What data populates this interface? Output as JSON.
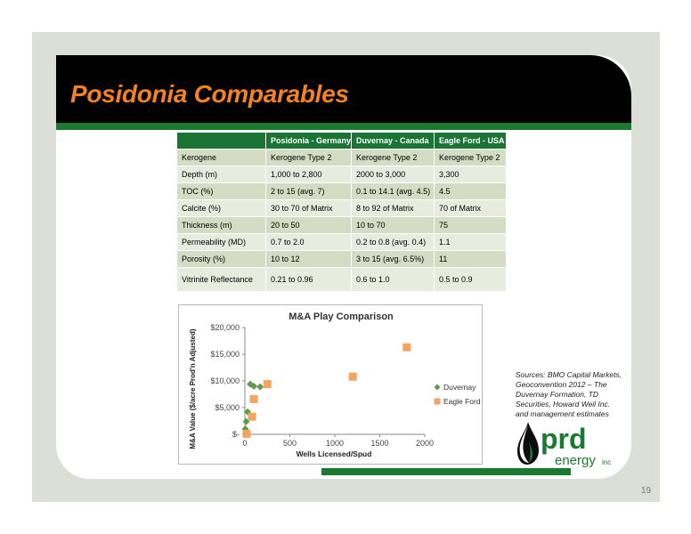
{
  "slide": {
    "title": "Posidonia Comparables",
    "page_number": "19",
    "sources": "Sources: BMO Capital Markets, Geoconvention 2012 – The Duvernay Formation, TD Securities, Howard Weil Inc. and management estimates",
    "logo": {
      "brand": "prd",
      "sub": "energy",
      "suffix": "inc"
    }
  },
  "colors": {
    "title": "#f58220",
    "header_green": "#1a7433",
    "row_dark": "#d4ddc3",
    "row_light": "#e8ecdf"
  },
  "table": {
    "headers": [
      "",
      "Posidonia - Germany",
      "Duvernay - Canada",
      "Eagle Ford - USA"
    ],
    "rows": [
      [
        "Kerogene",
        "Kerogene Type 2",
        "Kerogene Type 2",
        "Kerogene Type 2"
      ],
      [
        "Depth (m)",
        "1,000 to 2,800",
        "2000 to 3,000",
        "3,300"
      ],
      [
        "TOC (%)",
        "2 to 15 (avg. 7)",
        "0.1 to 14.1 (avg. 4.5)",
        "4.5"
      ],
      [
        "Calcite (%)",
        "30 to 70 of Matrix",
        "8 to 92 of Matrix",
        "70 of Matrix"
      ],
      [
        "Thickness (m)",
        "20 to 50",
        "10 to 70",
        "75"
      ],
      [
        "Permeability (MD)",
        "0.7 to 2.0",
        "0.2 to 0.8 (avg. 0.4)",
        "1.1"
      ],
      [
        "Porosity (%)",
        "10 to 12",
        "3 to 15 (avg. 6.5%)",
        "11"
      ],
      [
        "Vitrinite Reflectance",
        "0.21 to 0.96",
        "0.6 to 1.0",
        "0.5 to 0.9"
      ]
    ]
  },
  "chart_data": {
    "type": "scatter",
    "title": "M&A Play Comparison",
    "xlabel": "Wells Licensed/Spud",
    "ylabel": "M&A Value ($/acre Prod'n Adjusted)",
    "xlim": [
      0,
      2000
    ],
    "ylim": [
      0,
      20000
    ],
    "xticks": [
      "0",
      "500",
      "1000",
      "1500",
      "2000"
    ],
    "yticks": [
      "$-",
      "$5,000",
      "$10,000",
      "$15,000",
      "$20,000"
    ],
    "legend": "right",
    "series": [
      {
        "name": "Duvernay",
        "marker": "diamond",
        "color": "#5f9a4a",
        "x": [
          5,
          15,
          30,
          60,
          100,
          170
        ],
        "y": [
          1000,
          2400,
          4200,
          9400,
          9000,
          8900
        ]
      },
      {
        "name": "Eagle Ford",
        "marker": "square",
        "color": "#f4a460",
        "x": [
          20,
          80,
          100,
          250,
          1200,
          1800
        ],
        "y": [
          100,
          3300,
          6600,
          9400,
          10800,
          16300
        ]
      }
    ]
  }
}
